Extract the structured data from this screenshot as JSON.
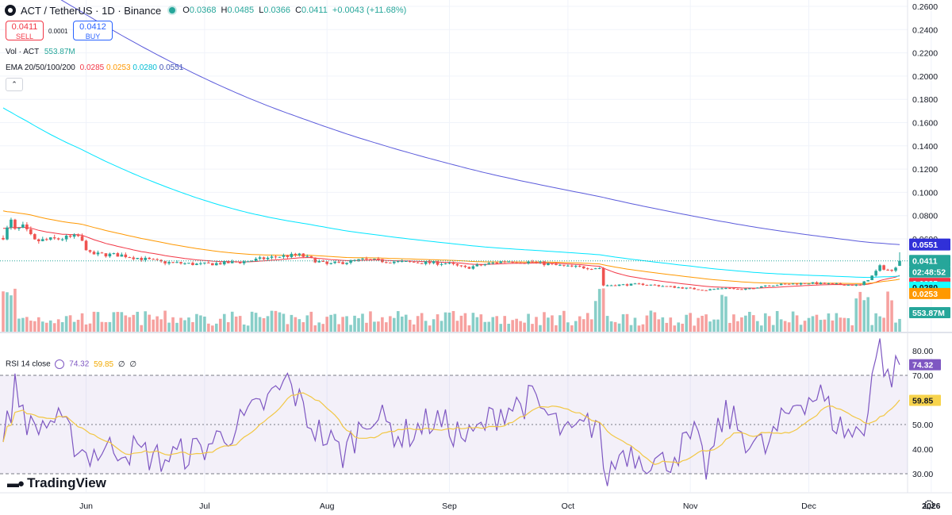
{
  "header": {
    "symbol": "ACT / TetherUS · 1D · Binance",
    "o_label": "O",
    "o": "0.0368",
    "h_label": "H",
    "h": "0.0485",
    "l_label": "L",
    "l": "0.0366",
    "c_label": "C",
    "c": "0.0411",
    "change": "+0.0043 (+11.68%)"
  },
  "trade": {
    "sell_price": "0.0411",
    "sell_label": "SELL",
    "spread": "0.0001",
    "buy_price": "0.0412",
    "buy_label": "BUY"
  },
  "volume_legend": {
    "label": "Vol · ACT",
    "value": "553.87M"
  },
  "ema_legend": {
    "label": "EMA 20/50/100/200",
    "v20": "0.0285",
    "v50": "0.0253",
    "v100": "0.0280",
    "v200": "0.0551"
  },
  "rsi_legend": {
    "label": "RSI 14 close",
    "rsi": "74.32",
    "ma": "59.85",
    "e1": "∅",
    "e2": "∅"
  },
  "price_axis_badges": {
    "ema200": "0.0551",
    "last": "0.0411",
    "countdown": "02:48:52",
    "ema20": "0.0285",
    "ema100": "0.0280",
    "ema50": "0.0253",
    "volume": "553.87M"
  },
  "rsi_axis_badges": {
    "rsi": "74.32",
    "ma": "59.85"
  },
  "brand": {
    "logo": "TradingView"
  },
  "colors": {
    "up": "#26a69a",
    "down": "#ef5350",
    "ema20": "#f23645",
    "ema50": "#ff9800",
    "ema100": "#00e5ff",
    "ema200": "#5b5bdb",
    "rsi": "#7e57c2",
    "rsi_ma": "#f2c744"
  },
  "chart_data": [
    {
      "type": "candlestick",
      "title": "ACT / TetherUS · 1D · Binance",
      "ylim": [
        0,
        0.26
      ],
      "y_ticks": [
        "0.2600",
        "0.2400",
        "0.2200",
        "0.2000",
        "0.1800",
        "0.1600",
        "0.1400",
        "0.1200",
        "0.1000",
        "0.0800",
        "0.0600"
      ],
      "x_ticks": [
        "Jun",
        "Jul",
        "Aug",
        "Sep",
        "Oct",
        "Nov",
        "Dec",
        "2026"
      ],
      "x_tick_dates": [
        "2025-06-01",
        "2025-07-01",
        "2025-08-01",
        "2025-09-01",
        "2025-10-01",
        "2025-11-01",
        "2025-12-01",
        "2026-01-01"
      ],
      "x_start": "2025-05-11",
      "x_end": "2025-12-24",
      "close_waypoints": [
        [
          "2025-05-11",
          0.062
        ],
        [
          "2025-05-13",
          0.075
        ],
        [
          "2025-05-14",
          0.067
        ],
        [
          "2025-05-16",
          0.07
        ],
        [
          "2025-05-19",
          0.058
        ],
        [
          "2025-05-25",
          0.06
        ],
        [
          "2025-05-30",
          0.062
        ],
        [
          "2025-06-02",
          0.047
        ],
        [
          "2025-06-10",
          0.046
        ],
        [
          "2025-06-20",
          0.04
        ],
        [
          "2025-06-30",
          0.038
        ],
        [
          "2025-07-10",
          0.04
        ],
        [
          "2025-07-20",
          0.045
        ],
        [
          "2025-07-25",
          0.046
        ],
        [
          "2025-08-01",
          0.038
        ],
        [
          "2025-08-10",
          0.042
        ],
        [
          "2025-08-20",
          0.04
        ],
        [
          "2025-08-31",
          0.039
        ],
        [
          "2025-09-05",
          0.035
        ],
        [
          "2025-09-15",
          0.041
        ],
        [
          "2025-09-22",
          0.04
        ],
        [
          "2025-10-01",
          0.036
        ],
        [
          "2025-10-09",
          0.035
        ],
        [
          "2025-10-10",
          0.02
        ],
        [
          "2025-10-20",
          0.021
        ],
        [
          "2025-11-05",
          0.016
        ],
        [
          "2025-11-10",
          0.018
        ],
        [
          "2025-11-14",
          0.016
        ],
        [
          "2025-11-20",
          0.02
        ],
        [
          "2025-12-01",
          0.022
        ],
        [
          "2025-12-14",
          0.02
        ],
        [
          "2025-12-17",
          0.028
        ],
        [
          "2025-12-19",
          0.036
        ],
        [
          "2025-12-22",
          0.032
        ],
        [
          "2025-12-24",
          0.0411
        ]
      ],
      "last": {
        "open": 0.0368,
        "high": 0.0485,
        "low": 0.0366,
        "close": 0.0411
      },
      "series": [
        {
          "name": "EMA 20",
          "last": 0.0285
        },
        {
          "name": "EMA 50",
          "last": 0.0253
        },
        {
          "name": "EMA 100",
          "last": 0.028
        },
        {
          "name": "EMA 200",
          "last": 0.0551
        }
      ]
    },
    {
      "type": "line",
      "title": "RSI 14 close",
      "ylim": [
        25,
        85
      ],
      "y_ticks": [
        80,
        70,
        50,
        40,
        30
      ],
      "bands": [
        30,
        70
      ],
      "midline": 50,
      "rsi_waypoints": [
        [
          "2025-05-11",
          42
        ],
        [
          "2025-05-14",
          65
        ],
        [
          "2025-05-18",
          48
        ],
        [
          "2025-05-24",
          52
        ],
        [
          "2025-06-01",
          38
        ],
        [
          "2025-06-10",
          41
        ],
        [
          "2025-06-20",
          36
        ],
        [
          "2025-06-30",
          40
        ],
        [
          "2025-07-10",
          50
        ],
        [
          "2025-07-20",
          64
        ],
        [
          "2025-07-22",
          68
        ],
        [
          "2025-07-28",
          50
        ],
        [
          "2025-08-05",
          38
        ],
        [
          "2025-08-12",
          55
        ],
        [
          "2025-08-20",
          45
        ],
        [
          "2025-08-28",
          52
        ],
        [
          "2025-09-06",
          44
        ],
        [
          "2025-09-14",
          56
        ],
        [
          "2025-09-22",
          60
        ],
        [
          "2025-10-01",
          45
        ],
        [
          "2025-10-09",
          52
        ],
        [
          "2025-10-10",
          26
        ],
        [
          "2025-10-15",
          40
        ],
        [
          "2025-10-25",
          34
        ],
        [
          "2025-11-02",
          45
        ],
        [
          "2025-11-05",
          32
        ],
        [
          "2025-11-10",
          55
        ],
        [
          "2025-11-15",
          45
        ],
        [
          "2025-11-20",
          40
        ],
        [
          "2025-11-28",
          60
        ],
        [
          "2025-12-04",
          62
        ],
        [
          "2025-12-08",
          50
        ],
        [
          "2025-12-12",
          46
        ],
        [
          "2025-12-15",
          48
        ],
        [
          "2025-12-17",
          72
        ],
        [
          "2025-12-19",
          82
        ],
        [
          "2025-12-21",
          68
        ],
        [
          "2025-12-24",
          74.32
        ]
      ],
      "series": [
        {
          "name": "RSI",
          "last": 74.32
        },
        {
          "name": "RSI MA",
          "last": 59.85
        }
      ]
    }
  ]
}
